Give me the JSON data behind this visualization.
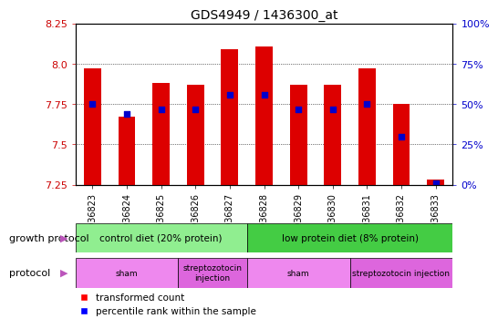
{
  "title": "GDS4949 / 1436300_at",
  "samples": [
    "GSM936823",
    "GSM936824",
    "GSM936825",
    "GSM936826",
    "GSM936827",
    "GSM936828",
    "GSM936829",
    "GSM936830",
    "GSM936831",
    "GSM936832",
    "GSM936833"
  ],
  "transformed_count": [
    7.97,
    7.67,
    7.88,
    7.87,
    8.09,
    8.11,
    7.87,
    7.87,
    7.97,
    7.75,
    7.28
  ],
  "percentile_rank": [
    50,
    44,
    47,
    47,
    56,
    56,
    47,
    47,
    50,
    30,
    1
  ],
  "ylim_left": [
    7.25,
    8.25
  ],
  "ylim_right": [
    0,
    100
  ],
  "yticks_left": [
    7.25,
    7.5,
    7.75,
    8.0,
    8.25
  ],
  "yticks_right": [
    0,
    25,
    50,
    75,
    100
  ],
  "bar_color": "#dd0000",
  "dot_color": "#0000cc",
  "bar_bottom": 7.25,
  "growth_protocol_groups": [
    {
      "label": "control diet (20% protein)",
      "start": 0,
      "end": 4,
      "color": "#90ee90"
    },
    {
      "label": "low protein diet (8% protein)",
      "start": 5,
      "end": 10,
      "color": "#44cc44"
    }
  ],
  "protocol_groups": [
    {
      "label": "sham",
      "start": 0,
      "end": 2,
      "color": "#ee88ee"
    },
    {
      "label": "streptozotocin\ninjection",
      "start": 3,
      "end": 4,
      "color": "#dd66dd"
    },
    {
      "label": "sham",
      "start": 5,
      "end": 7,
      "color": "#ee88ee"
    },
    {
      "label": "streptozotocin injection",
      "start": 8,
      "end": 10,
      "color": "#dd66dd"
    }
  ],
  "bg_color": "#ffffff",
  "left_label_color": "#cc0000",
  "right_label_color": "#0000cc"
}
